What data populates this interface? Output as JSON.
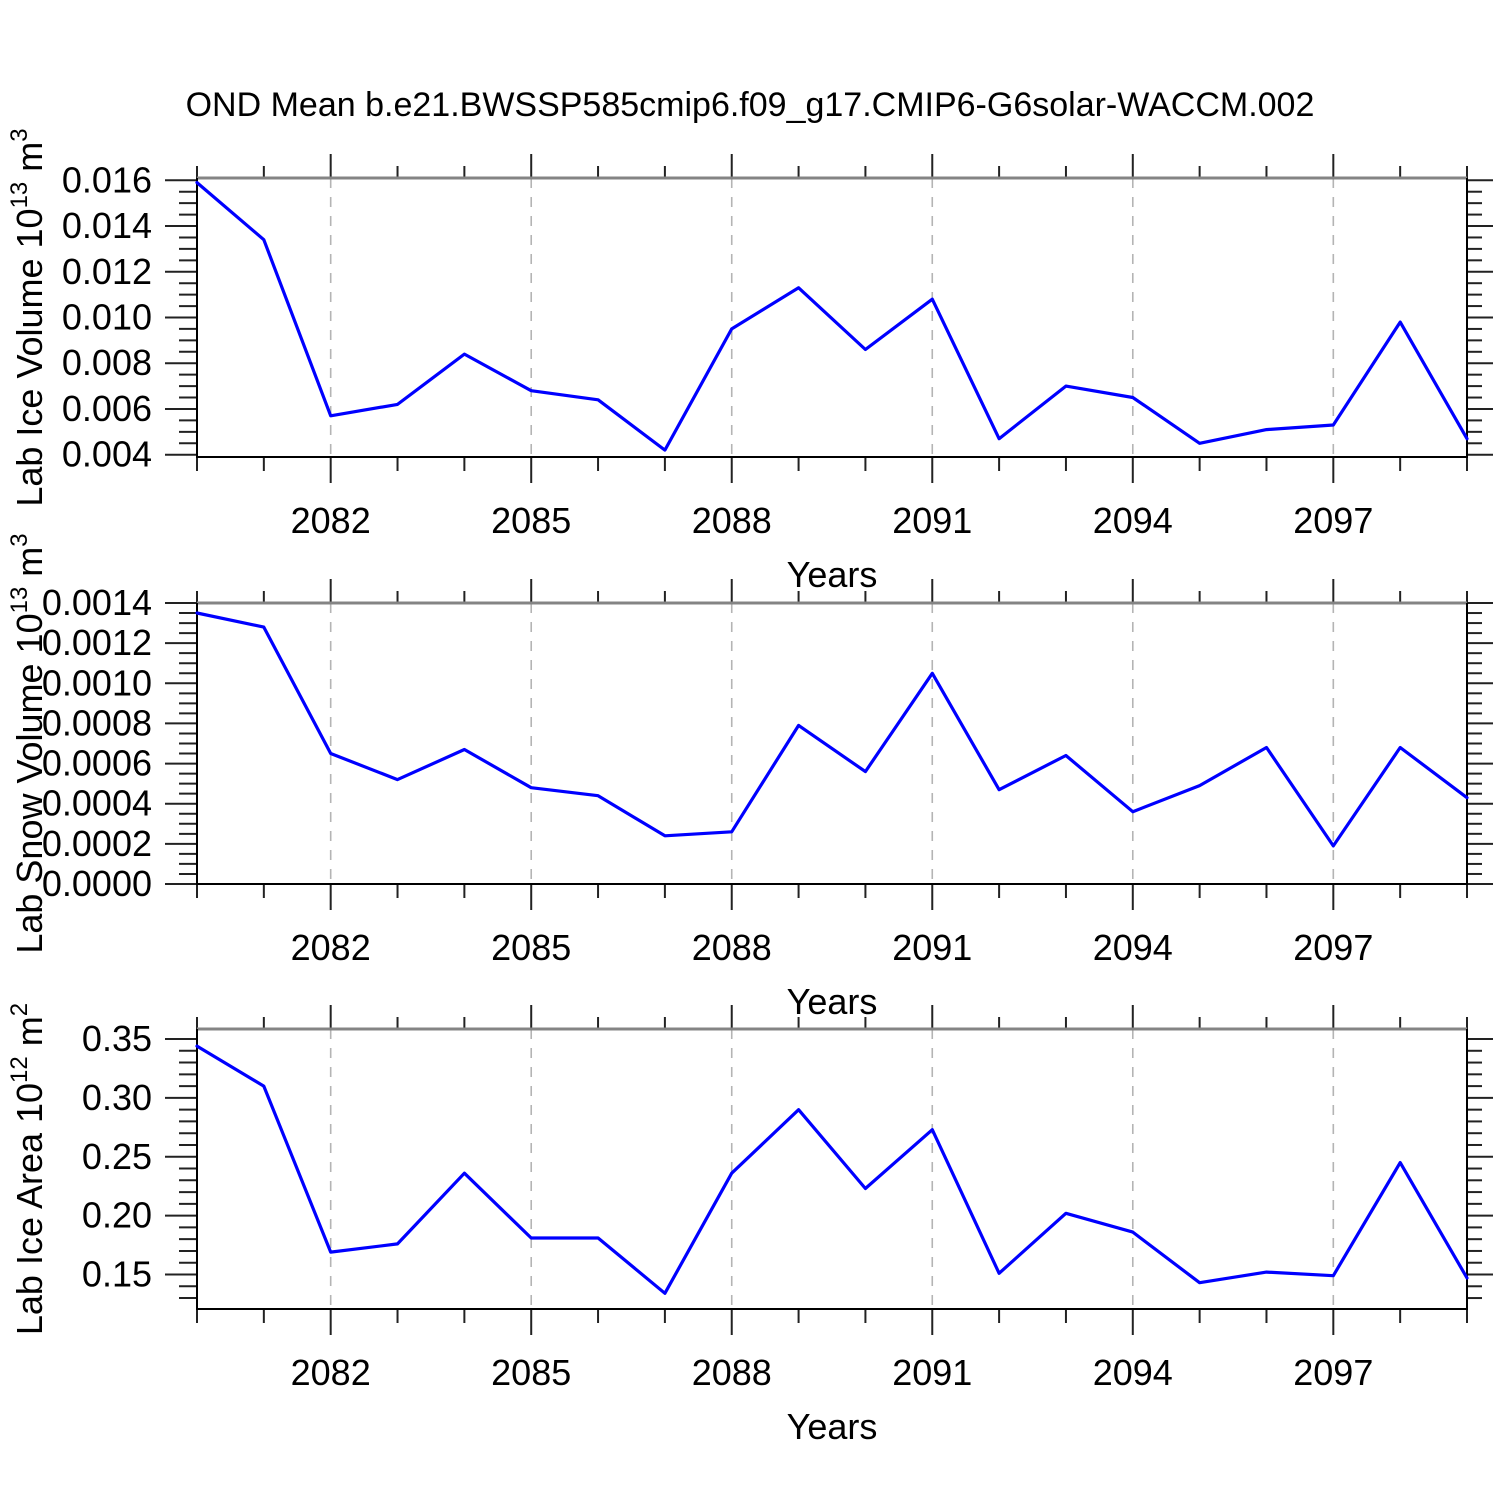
{
  "title": "OND Mean b.e21.BWSSP585cmip6.f09_g17.CMIP6-G6solar-WACCM.002",
  "style": {
    "line_color": "#0000ff",
    "grid_color": "#b4b4b4",
    "axis_color": "#000000",
    "top_border_color": "#848484",
    "tick_color": "#222222"
  },
  "chart_data": [
    {
      "id": "lab-ice-volume",
      "type": "line",
      "xlabel": "Years",
      "ylabel": "Lab Ice Volume 10¹³ m³",
      "ylabel_parts": [
        {
          "t": "Lab Ice Volume 10",
          "sup": false
        },
        {
          "t": "13",
          "sup": true
        },
        {
          "t": " m",
          "sup": false
        },
        {
          "t": "3",
          "sup": true
        }
      ],
      "x": [
        2080,
        2081,
        2082,
        2083,
        2084,
        2085,
        2086,
        2087,
        2088,
        2089,
        2090,
        2091,
        2092,
        2093,
        2094,
        2095,
        2096,
        2097,
        2098,
        2099
      ],
      "values": [
        0.0159,
        0.0134,
        0.0057,
        0.0062,
        0.0084,
        0.0068,
        0.0064,
        0.0042,
        0.0095,
        0.0113,
        0.0086,
        0.0108,
        0.0047,
        0.007,
        0.0065,
        0.0045,
        0.0051,
        0.0053,
        0.0098,
        0.0047
      ],
      "xlim": [
        2080,
        2099
      ],
      "ylim": [
        0.0039,
        0.0161
      ],
      "xticks": [
        2082,
        2085,
        2088,
        2091,
        2094,
        2097
      ],
      "xtick_labels": [
        "2082",
        "2085",
        "2088",
        "2091",
        "2094",
        "2097"
      ],
      "xtick_minor_step": 1,
      "yticks": [
        0.004,
        0.006,
        0.008,
        0.01,
        0.012,
        0.014,
        0.016
      ],
      "ytick_labels": [
        "0.004",
        "0.006",
        "0.008",
        "0.010",
        "0.012",
        "0.014",
        "0.016"
      ],
      "ytick_minor_step": 0.0005,
      "grid": true
    },
    {
      "id": "lab-snow-volume",
      "type": "line",
      "xlabel": "Years",
      "ylabel": "Lab Snow Volume 10¹³ m³",
      "ylabel_parts": [
        {
          "t": "Lab Snow Volume 10",
          "sup": false
        },
        {
          "t": "13",
          "sup": true
        },
        {
          "t": " m",
          "sup": false
        },
        {
          "t": "3",
          "sup": true
        }
      ],
      "x": [
        2080,
        2081,
        2082,
        2083,
        2084,
        2085,
        2086,
        2087,
        2088,
        2089,
        2090,
        2091,
        2092,
        2093,
        2094,
        2095,
        2096,
        2097,
        2098,
        2099
      ],
      "values": [
        0.00135,
        0.00128,
        0.00065,
        0.00052,
        0.00067,
        0.00048,
        0.00044,
        0.00024,
        0.00026,
        0.00079,
        0.00056,
        0.00105,
        0.00047,
        0.00064,
        0.00036,
        0.00049,
        0.00068,
        0.00019,
        0.00068,
        0.00043
      ],
      "xlim": [
        2080,
        2099
      ],
      "ylim": [
        0.0,
        0.0014
      ],
      "xticks": [
        2082,
        2085,
        2088,
        2091,
        2094,
        2097
      ],
      "xtick_labels": [
        "2082",
        "2085",
        "2088",
        "2091",
        "2094",
        "2097"
      ],
      "xtick_minor_step": 1,
      "yticks": [
        0.0,
        0.0002,
        0.0004,
        0.0006,
        0.0008,
        0.001,
        0.0012,
        0.0014
      ],
      "ytick_labels": [
        "0.0000",
        "0.0002",
        "0.0004",
        "0.0006",
        "0.0008",
        "0.0010",
        "0.0012",
        "0.0014"
      ],
      "ytick_minor_step": 5e-05,
      "grid": true
    },
    {
      "id": "lab-ice-area",
      "type": "line",
      "xlabel": "Years",
      "ylabel": "Lab Ice Area 10¹² m²",
      "ylabel_parts": [
        {
          "t": "Lab Ice Area 10",
          "sup": false
        },
        {
          "t": "12",
          "sup": true
        },
        {
          "t": " m",
          "sup": false
        },
        {
          "t": "2",
          "sup": true
        }
      ],
      "x": [
        2080,
        2081,
        2082,
        2083,
        2084,
        2085,
        2086,
        2087,
        2088,
        2089,
        2090,
        2091,
        2092,
        2093,
        2094,
        2095,
        2096,
        2097,
        2098,
        2099
      ],
      "values": [
        0.344,
        0.31,
        0.169,
        0.176,
        0.236,
        0.181,
        0.181,
        0.134,
        0.236,
        0.29,
        0.223,
        0.273,
        0.151,
        0.202,
        0.186,
        0.143,
        0.152,
        0.149,
        0.245,
        0.147
      ],
      "xlim": [
        2080,
        2099
      ],
      "ylim": [
        0.1207,
        0.3585
      ],
      "xticks": [
        2082,
        2085,
        2088,
        2091,
        2094,
        2097
      ],
      "xtick_labels": [
        "2082",
        "2085",
        "2088",
        "2091",
        "2094",
        "2097"
      ],
      "xtick_minor_step": 1,
      "yticks": [
        0.15,
        0.2,
        0.25,
        0.3,
        0.35
      ],
      "ytick_labels": [
        "0.15",
        "0.20",
        "0.25",
        "0.30",
        "0.35"
      ],
      "ytick_minor_step": 0.01,
      "grid": true
    }
  ]
}
